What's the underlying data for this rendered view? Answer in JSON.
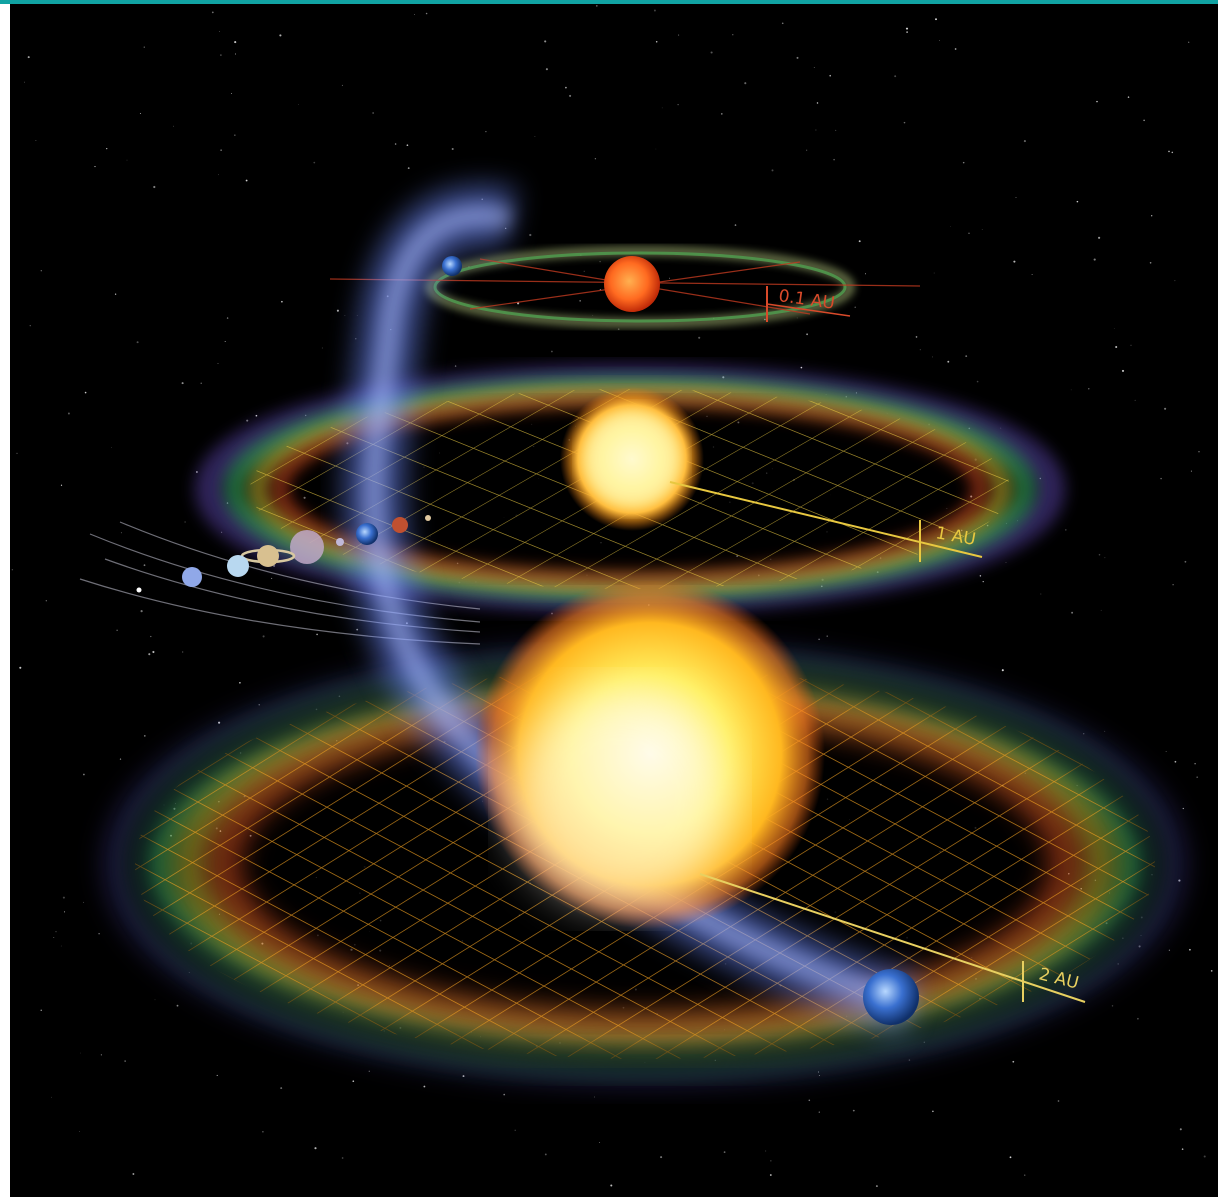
{
  "labels": {
    "au_01": "0.1 AU",
    "au_1": "1 AU",
    "au_2": "2 AU"
  },
  "colors": {
    "border": "#11a3a3",
    "background": "#000000",
    "label_01": "#d94a2a",
    "label_1": "#e8c840",
    "label_2": "#e8d060",
    "grid": "#f0a020",
    "planet_stream": "#7f9cff"
  }
}
